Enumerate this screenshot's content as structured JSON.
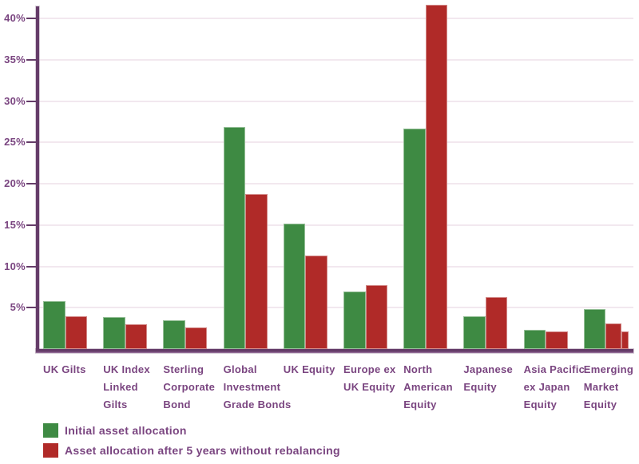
{
  "colors": {
    "green": "#3e8a43",
    "red": "#b02a28",
    "axis": "#653c69",
    "grid": "#f2e8ef",
    "label": "#7a4580"
  },
  "chart_data": {
    "type": "bar",
    "title": "",
    "xlabel": "",
    "ylabel": "",
    "ylim": [
      0,
      42
    ],
    "grid": true,
    "legend_position": "bottom-left",
    "y_ticks": [
      "5%",
      "10%",
      "15%",
      "20%",
      "25%",
      "30%",
      "35%",
      "40%"
    ],
    "categories": [
      "UK Gilts",
      "UK Index Linked Gilts",
      "Sterling Corporate Bond",
      "Global Investment Grade Bonds",
      "UK Equity",
      "Europe ex UK Equity",
      "North American Equity",
      "Japanese Equity",
      "Asia Pacific ex Japan Equity",
      "Emerging Market Equity"
    ],
    "category_label_lines": [
      [
        "UK Gilts"
      ],
      [
        "UK Index",
        "Linked",
        "Gilts"
      ],
      [
        "Sterling",
        "Corporate",
        "Bond"
      ],
      [
        "Global",
        "Investment",
        "Grade Bonds"
      ],
      [
        "UK Equity"
      ],
      [
        "Europe ex",
        "UK Equity"
      ],
      [
        "North",
        "American",
        "Equity"
      ],
      [
        "Japanese",
        "Equity"
      ],
      [
        "Asia Pacific",
        "ex Japan",
        "Equity"
      ],
      [
        "Emerging",
        "Market",
        "Equity"
      ]
    ],
    "series": [
      {
        "name": "Initial asset allocation",
        "color": "#3e8a43",
        "values": [
          5.8,
          3.9,
          3.5,
          26.9,
          15.2,
          7.0,
          26.7,
          4.0,
          2.3,
          4.8
        ]
      },
      {
        "name": "Asset allocation after 5 years without rebalancing",
        "color": "#b02a28",
        "values": [
          4.0,
          3.0,
          2.6,
          18.7,
          11.3,
          7.7,
          41.6,
          6.3,
          2.1,
          3.1
        ]
      }
    ],
    "extra_segment": {
      "category": "Emerging Market Equity",
      "series": "Asset allocation after 5 years without rebalancing",
      "value": 2.1
    }
  }
}
